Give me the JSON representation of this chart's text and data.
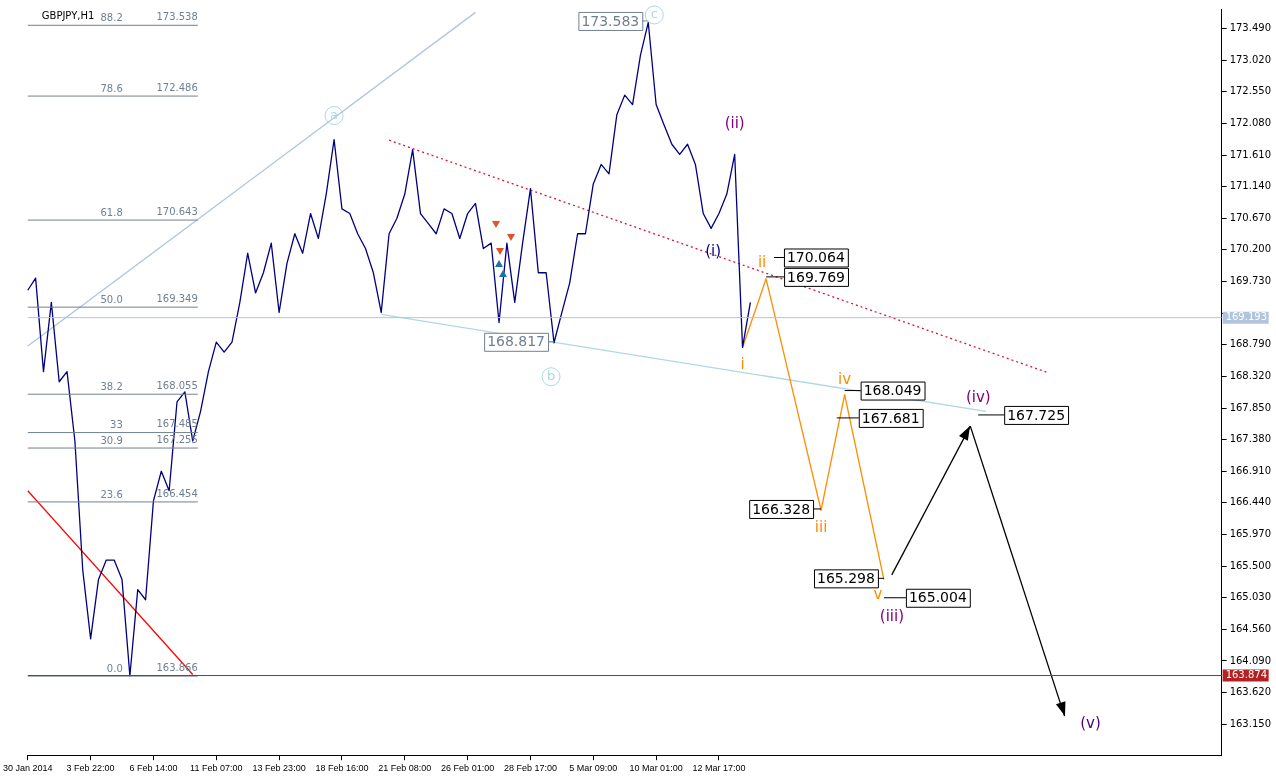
{
  "chart_data": {
    "type": "line",
    "title": "GBPJPY,H1",
    "categories": [
      "30 Jan 2014",
      null,
      null,
      null,
      null,
      null,
      null,
      null,
      "3 Feb 22:00",
      null,
      null,
      null,
      null,
      null,
      null,
      null,
      "6 Feb 14:00",
      null,
      null,
      null,
      null,
      null,
      null,
      null,
      "11 Feb 07:00",
      null,
      null,
      null,
      null,
      null,
      null,
      null,
      "13 Feb 23:00",
      null,
      null,
      null,
      null,
      null,
      null,
      null,
      "18 Feb 16:00",
      null,
      null,
      null,
      null,
      null,
      null,
      null,
      "21 Feb 08:00",
      null,
      null,
      null,
      null,
      null,
      null,
      null,
      "26 Feb 01:00",
      null,
      null,
      null,
      null,
      null,
      null,
      null,
      "28 Feb 17:00",
      null,
      null,
      null,
      null,
      null,
      null,
      null,
      "5 Mar 09:00",
      null,
      null,
      null,
      null,
      null,
      null,
      null,
      "10 Mar 01:00",
      null,
      null,
      null,
      null,
      null,
      null,
      null,
      "12 Mar 17:00",
      null,
      null,
      null,
      null,
      null,
      null,
      null,
      null,
      null,
      null,
      null,
      null,
      null,
      null,
      null,
      null,
      null,
      null,
      null,
      null,
      null,
      null,
      null,
      null,
      null,
      null,
      null,
      null,
      null,
      null,
      null,
      null,
      null,
      null,
      null,
      null,
      null,
      null,
      null,
      null,
      null,
      null,
      null,
      null,
      null,
      null,
      null,
      null,
      null,
      null,
      null,
      null,
      null,
      null,
      null,
      null,
      null,
      null,
      null,
      null,
      null,
      null,
      null,
      null
    ],
    "ylim": [
      162.69,
      173.78
    ],
    "yticks": [
      {
        "value": 163.15,
        "label": "163.150"
      },
      {
        "value": 163.62,
        "label": "163.620"
      },
      {
        "value": 164.09,
        "label": "164.090"
      },
      {
        "value": 164.56,
        "label": "164.560"
      },
      {
        "value": 165.03,
        "label": "165.030"
      },
      {
        "value": 165.5,
        "label": "165.500"
      },
      {
        "value": 165.97,
        "label": "165.970"
      },
      {
        "value": 166.44,
        "label": "166.440"
      },
      {
        "value": 166.91,
        "label": "166.910"
      },
      {
        "value": 167.38,
        "label": "167.380"
      },
      {
        "value": 167.85,
        "label": "167.850"
      },
      {
        "value": 168.32,
        "label": "168.320"
      },
      {
        "value": 168.79,
        "label": "168.790"
      },
      {
        "value": 169.26,
        "label": null
      },
      {
        "value": 169.73,
        "label": "169.730"
      },
      {
        "value": 170.2,
        "label": "170.200"
      },
      {
        "value": 170.67,
        "label": "170.670"
      },
      {
        "value": 171.14,
        "label": "171.140"
      },
      {
        "value": 171.61,
        "label": "171.610"
      },
      {
        "value": 172.08,
        "label": "172.080"
      },
      {
        "value": 172.55,
        "label": "172.550"
      },
      {
        "value": 173.02,
        "label": "173.020"
      },
      {
        "value": 173.49,
        "label": "173.490"
      }
    ],
    "grid": false,
    "legend": false,
    "marker": "none",
    "series": [
      {
        "type": "line",
        "color": "#000080",
        "values": [
          169.6,
          169.78,
          168.39,
          169.42,
          168.24,
          168.39,
          167.36,
          165.44,
          164.42,
          165.3,
          165.59,
          165.59,
          165.3,
          163.87,
          165.15,
          165.0,
          166.47,
          166.91,
          166.62,
          167.94,
          168.09,
          167.36,
          167.8,
          168.39,
          168.83,
          168.68,
          168.83,
          169.42,
          170.15,
          169.56,
          169.86,
          170.3,
          169.27,
          170.0,
          170.44,
          170.15,
          170.74,
          170.37,
          171.03,
          171.84,
          170.81,
          170.74,
          170.44,
          170.22,
          169.86,
          169.27,
          170.44,
          170.67,
          171.03,
          171.69,
          170.74,
          170.59,
          170.44,
          170.81,
          170.74,
          170.37,
          170.74,
          170.89,
          170.22,
          170.3,
          169.12,
          170.3,
          169.42,
          170.3,
          171.11,
          169.86,
          169.86,
          168.82,
          169.27,
          169.71,
          170.44,
          170.44,
          171.18,
          171.47,
          171.33,
          172.21,
          172.5,
          172.36,
          173.09,
          173.58,
          172.36,
          172.06,
          171.77,
          171.62,
          171.77,
          171.47,
          170.74,
          170.52,
          170.74,
          171.03,
          171.62,
          168.75,
          169.42,
          null,
          null,
          null,
          null,
          null,
          null,
          null,
          null,
          null,
          null,
          null,
          null,
          null,
          null,
          null,
          null,
          null,
          null,
          null,
          null,
          null,
          null,
          null,
          null,
          null,
          null,
          null,
          null,
          null,
          null,
          null,
          null,
          null,
          null,
          null,
          null,
          null,
          null,
          null,
          null,
          null,
          null,
          null,
          null,
          null,
          null,
          null,
          null,
          null,
          null,
          null,
          null,
          null,
          null,
          null,
          null,
          null,
          null,
          null,
          null
        ]
      },
      {
        "type": "line",
        "color": "#ff8c00",
        "values": [
          null,
          null,
          null,
          null,
          null,
          null,
          null,
          null,
          null,
          null,
          null,
          null,
          null,
          null,
          null,
          null,
          null,
          null,
          null,
          null,
          null,
          null,
          null,
          null,
          null,
          null,
          null,
          null,
          null,
          null,
          null,
          null,
          null,
          null,
          null,
          null,
          null,
          null,
          null,
          null,
          null,
          null,
          null,
          null,
          null,
          null,
          null,
          null,
          null,
          null,
          null,
          null,
          null,
          null,
          null,
          null,
          null,
          null,
          null,
          null,
          null,
          null,
          null,
          null,
          null,
          null,
          null,
          null,
          null,
          null,
          null,
          null,
          null,
          null,
          null,
          null,
          null,
          null,
          null,
          null,
          null,
          null,
          null,
          null,
          null,
          null,
          null,
          null,
          null,
          null,
          null,
          168.75,
          null,
          null,
          169.77,
          null,
          null,
          null,
          null,
          null,
          null,
          166.33,
          null,
          null,
          168.05,
          null,
          null,
          null,
          null,
          165.3,
          null,
          null,
          null,
          null,
          null,
          null,
          null,
          null,
          null,
          null,
          null,
          null,
          null,
          null,
          null,
          null,
          null,
          null,
          null,
          null,
          null,
          null,
          null,
          null,
          null,
          null,
          null,
          null,
          null,
          null,
          null,
          null,
          null,
          null,
          null,
          null,
          null,
          null,
          null,
          null,
          null,
          null,
          null
        ]
      },
      {
        "type": "line",
        "color": "#000000",
        "values": [
          null,
          null,
          null,
          null,
          null,
          null,
          null,
          null,
          null,
          null,
          null,
          null,
          null,
          null,
          null,
          null,
          null,
          null,
          null,
          null,
          null,
          null,
          null,
          null,
          null,
          null,
          null,
          null,
          null,
          null,
          null,
          null,
          null,
          null,
          null,
          null,
          null,
          null,
          null,
          null,
          null,
          null,
          null,
          null,
          null,
          null,
          null,
          null,
          null,
          null,
          null,
          null,
          null,
          null,
          null,
          null,
          null,
          null,
          null,
          null,
          null,
          null,
          null,
          null,
          null,
          null,
          null,
          null,
          null,
          null,
          null,
          null,
          null,
          null,
          null,
          null,
          null,
          null,
          null,
          null,
          null,
          null,
          null,
          null,
          null,
          null,
          null,
          null,
          null,
          null,
          null,
          null,
          null,
          null,
          null,
          null,
          null,
          null,
          null,
          null,
          null,
          null,
          null,
          null,
          null,
          null,
          null,
          null,
          null,
          null,
          165.37,
          null,
          null,
          null,
          null,
          null,
          null,
          null,
          null,
          null,
          167.58,
          null,
          null,
          null,
          null,
          null,
          null,
          null,
          null,
          null,
          null,
          null,
          null,
          null,
          null,
          null,
          null,
          null,
          null,
          null,
          null,
          null,
          null,
          null,
          null,
          null,
          null,
          null,
          null,
          null,
          null,
          null,
          null
        ]
      },
      {
        "type": "line",
        "color": "#000000",
        "values": [
          null,
          null,
          null,
          null,
          null,
          null,
          null,
          null,
          null,
          null,
          null,
          null,
          null,
          null,
          null,
          null,
          null,
          null,
          null,
          null,
          null,
          null,
          null,
          null,
          null,
          null,
          null,
          null,
          null,
          null,
          null,
          null,
          null,
          null,
          null,
          null,
          null,
          null,
          null,
          null,
          null,
          null,
          null,
          null,
          null,
          null,
          null,
          null,
          null,
          null,
          null,
          null,
          null,
          null,
          null,
          null,
          null,
          null,
          null,
          null,
          null,
          null,
          null,
          null,
          null,
          null,
          null,
          null,
          null,
          null,
          null,
          null,
          null,
          null,
          null,
          null,
          null,
          null,
          null,
          null,
          null,
          null,
          null,
          null,
          null,
          null,
          null,
          null,
          null,
          null,
          null,
          null,
          null,
          null,
          null,
          null,
          null,
          null,
          null,
          null,
          null,
          null,
          null,
          null,
          null,
          null,
          null,
          null,
          null,
          null,
          null,
          null,
          null,
          null,
          null,
          null,
          null,
          null,
          null,
          null,
          167.58,
          null,
          null,
          null,
          null,
          null,
          null,
          null,
          null,
          null,
          null,
          null,
          163.27,
          null,
          null,
          null,
          null,
          null,
          null,
          null,
          null,
          null,
          null,
          null,
          null,
          null,
          null,
          null,
          null,
          null,
          null,
          null,
          null
        ]
      },
      {
        "type": "line",
        "color": "#b0c4de",
        "values": [
          168.77,
          null,
          null,
          null,
          null,
          null,
          null,
          null,
          null,
          null,
          null,
          null,
          null,
          null,
          null,
          null,
          null,
          null,
          null,
          null,
          null,
          null,
          null,
          null,
          null,
          null,
          null,
          null,
          null,
          null,
          null,
          null,
          null,
          null,
          null,
          null,
          null,
          null,
          null,
          null,
          null,
          null,
          null,
          null,
          null,
          null,
          null,
          null,
          null,
          null,
          null,
          null,
          null,
          null,
          null,
          null,
          null,
          173.73,
          null,
          null,
          null,
          null,
          null,
          null,
          null,
          null,
          null,
          null,
          null,
          null,
          null,
          null,
          null,
          null,
          null,
          null,
          null,
          null,
          null,
          null,
          null,
          null,
          null,
          null,
          null,
          null,
          null,
          null,
          null,
          null,
          null,
          null,
          null,
          null,
          null,
          null,
          null,
          null,
          null,
          null,
          null,
          null,
          null,
          null,
          null,
          null,
          null,
          null,
          null,
          null,
          null,
          null,
          null,
          null,
          null,
          null,
          null,
          null,
          null,
          null,
          null,
          null,
          null,
          null,
          null,
          null,
          null,
          null,
          null,
          null,
          null,
          null,
          null,
          null,
          null,
          null,
          null,
          null,
          null,
          null,
          null,
          null,
          null,
          null,
          null,
          null,
          null,
          null,
          null,
          null,
          null,
          null,
          null
        ]
      },
      {
        "type": "line",
        "color": "#dc143c",
        "line_style": "dotted",
        "values": [
          null,
          null,
          null,
          null,
          null,
          null,
          null,
          null,
          null,
          null,
          null,
          null,
          null,
          null,
          null,
          null,
          null,
          null,
          null,
          null,
          null,
          null,
          null,
          null,
          null,
          null,
          null,
          null,
          null,
          null,
          null,
          null,
          null,
          null,
          null,
          null,
          null,
          null,
          null,
          null,
          null,
          null,
          null,
          null,
          null,
          null,
          171.83,
          null,
          null,
          null,
          null,
          null,
          null,
          null,
          null,
          null,
          null,
          null,
          null,
          null,
          null,
          null,
          null,
          null,
          null,
          null,
          null,
          null,
          null,
          null,
          null,
          null,
          null,
          null,
          null,
          null,
          null,
          null,
          null,
          null,
          null,
          null,
          null,
          null,
          null,
          null,
          null,
          null,
          null,
          null,
          null,
          null,
          null,
          null,
          null,
          null,
          null,
          null,
          null,
          null,
          null,
          null,
          null,
          null,
          null,
          null,
          null,
          null,
          null,
          null,
          null,
          null,
          null,
          null,
          null,
          null,
          null,
          null,
          null,
          null,
          null,
          null,
          null,
          null,
          null,
          null,
          null,
          null,
          null,
          null,
          168.37,
          null,
          null,
          null,
          null,
          null,
          null,
          null,
          null,
          null,
          null,
          null,
          null,
          null,
          null,
          null,
          null,
          null,
          null,
          null,
          null,
          null,
          null
        ]
      },
      {
        "type": "line",
        "color": "#ff0000",
        "values": [
          166.62,
          null,
          null,
          null,
          null,
          null,
          null,
          null,
          null,
          null,
          null,
          null,
          null,
          null,
          null,
          null,
          null,
          null,
          null,
          null,
          null,
          163.89,
          null,
          null,
          null,
          null,
          null,
          null,
          null,
          null,
          null,
          null,
          null,
          null,
          null,
          null,
          null,
          null,
          null,
          null,
          null,
          null,
          null,
          null,
          null,
          null,
          null,
          null,
          null,
          null,
          null,
          null,
          null,
          null,
          null,
          null,
          null,
          null,
          null,
          null,
          null,
          null,
          null,
          null,
          null,
          null,
          null,
          null,
          null,
          null,
          null,
          null,
          null,
          null,
          null,
          null,
          null,
          null,
          null,
          null,
          null,
          null,
          null,
          null,
          null,
          null,
          null,
          null,
          null,
          null,
          null,
          null,
          null,
          null,
          null,
          null,
          null,
          null,
          null,
          null,
          null,
          null,
          null,
          null,
          null,
          null,
          null,
          null,
          null,
          null,
          null,
          null,
          null,
          null,
          null,
          null,
          null,
          null,
          null,
          null,
          null,
          null,
          null,
          null,
          null,
          null,
          null,
          null,
          null,
          null,
          null,
          null,
          null,
          null,
          null,
          null,
          null,
          null,
          null,
          null,
          null,
          null,
          null,
          null,
          null,
          null,
          null,
          null,
          null,
          null,
          null,
          null,
          null
        ]
      },
      {
        "type": "line",
        "color": "#add8e6",
        "values": [
          null,
          null,
          null,
          null,
          null,
          null,
          null,
          null,
          null,
          null,
          null,
          null,
          null,
          null,
          null,
          null,
          null,
          null,
          null,
          null,
          null,
          null,
          null,
          null,
          null,
          null,
          null,
          null,
          null,
          null,
          null,
          null,
          null,
          null,
          null,
          null,
          null,
          null,
          null,
          null,
          null,
          null,
          null,
          null,
          null,
          169.24,
          null,
          null,
          null,
          null,
          null,
          null,
          null,
          null,
          null,
          null,
          null,
          null,
          null,
          null,
          null,
          null,
          null,
          null,
          null,
          null,
          null,
          null,
          null,
          null,
          null,
          null,
          null,
          null,
          null,
          null,
          null,
          null,
          null,
          null,
          null,
          null,
          null,
          null,
          null,
          null,
          null,
          null,
          null,
          null,
          null,
          null,
          null,
          null,
          null,
          null,
          null,
          null,
          null,
          null,
          null,
          null,
          null,
          null,
          null,
          null,
          null,
          null,
          null,
          null,
          null,
          null,
          null,
          null,
          null,
          null,
          null,
          null,
          null,
          null,
          null,
          null,
          167.8,
          null,
          null,
          null,
          null,
          null,
          null,
          null,
          null,
          null,
          null,
          null,
          null,
          null,
          null,
          null,
          null,
          null,
          null,
          null,
          null,
          null,
          null,
          null,
          null,
          null,
          null,
          null,
          null,
          null,
          null
        ]
      }
    ],
    "ref_lines": [
      {
        "axis": "y",
        "value": 173.538,
        "label": "173.538",
        "color": "#708090"
      },
      {
        "axis": "y",
        "value": 172.486,
        "label": "172.486",
        "color": "#708090"
      },
      {
        "axis": "y",
        "value": 170.643,
        "label": "170.643",
        "color": "#708090"
      },
      {
        "axis": "y",
        "value": 169.349,
        "label": "169.349",
        "color": "#708090"
      },
      {
        "axis": "y",
        "value": 168.055,
        "label": "168.055",
        "color": "#708090"
      },
      {
        "axis": "y",
        "value": 167.485,
        "label": "167.485",
        "color": "#708090"
      },
      {
        "axis": "y",
        "value": 167.255,
        "label": "167.255",
        "color": "#708090"
      },
      {
        "axis": "y",
        "value": 166.454,
        "label": "166.454",
        "color": "#708090"
      },
      {
        "axis": "y",
        "value": 163.866,
        "label": "163.866",
        "color": "#708090"
      },
      {
        "axis": "y",
        "value": 169.193,
        "label": "169.193",
        "color": "#b0c4de"
      },
      {
        "axis": "y",
        "value": 163.874,
        "label": "163.874",
        "color": "#b22222"
      }
    ],
    "annotations": [
      "173.583",
      "168.817",
      "170.064",
      "169.769",
      {
        "text": "168.049",
        "y": 168.05
      },
      "167.681",
      "167.725",
      "166.328",
      "165.298",
      "165.004",
      {
        "text": "i",
        "y": 168.75
      },
      {
        "text": "ii",
        "y": 169.77
      },
      {
        "text": "iii",
        "y": 166.33
      },
      {
        "text": "iv",
        "y": 168.05
      },
      "v",
      {
        "text": "(i)",
        "y": 170.52
      },
      {
        "text": "(ii)",
        "y": 171.62
      },
      {
        "text": "(iii)",
        "y": 165.3
      },
      "(iv)",
      "(v)",
      {
        "text": "a",
        "y": 171.84
      },
      {
        "text": "b",
        "y": 168.82
      },
      "c",
      "88.2",
      "78.6",
      "61.8",
      "50.0",
      "38.2",
      "33",
      "30.9",
      "23.6",
      "0.0"
    ]
  }
}
